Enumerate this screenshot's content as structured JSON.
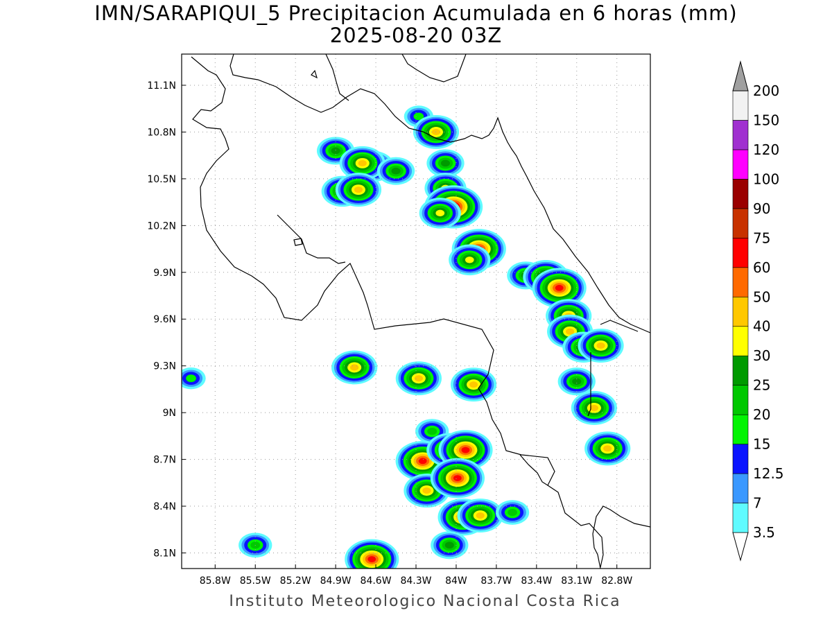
{
  "title": {
    "line1": "IMN/SARAPIQUI_5 Precipitacion Acumulada en 6 horas (mm)",
    "line2": "2025-08-20 03Z"
  },
  "credit": "Instituto Meteorologico Nacional Costa Rica",
  "map": {
    "lon_range": [
      -86.05,
      -82.55
    ],
    "lat_range": [
      8.0,
      11.3
    ],
    "lon_ticks": [
      "85.8W",
      "85.5W",
      "85.2W",
      "84.9W",
      "84.6W",
      "84.3W",
      "84W",
      "83.7W",
      "83.4W",
      "83.1W",
      "82.8W"
    ],
    "lon_tick_values": [
      -85.8,
      -85.5,
      -85.2,
      -84.9,
      -84.6,
      -84.3,
      -84.0,
      -83.7,
      -83.4,
      -83.1,
      -82.8
    ],
    "lat_ticks": [
      "8.1N",
      "8.4N",
      "8.7N",
      "9N",
      "9.3N",
      "9.6N",
      "9.9N",
      "10.2N",
      "10.5N",
      "10.8N",
      "11.1N"
    ],
    "lat_tick_values": [
      8.1,
      8.4,
      8.7,
      9.0,
      9.3,
      9.6,
      9.9,
      10.2,
      10.5,
      10.8,
      11.1
    ],
    "grid": true
  },
  "colorbar": {
    "levels": [
      "3.5",
      "7",
      "12.5",
      "15",
      "20",
      "25",
      "30",
      "40",
      "50",
      "60",
      "75",
      "90",
      "100",
      "120",
      "150",
      "200"
    ],
    "colors": [
      "#ffffff",
      "#5ffbff",
      "#3a98ff",
      "#0a14ff",
      "#02f402",
      "#00c800",
      "#009a00",
      "#ffff00",
      "#ffc800",
      "#ff6a00",
      "#ff0000",
      "#c83200",
      "#9a0000",
      "#ff00ff",
      "#a030d0",
      "#f2f2f2",
      "#a0a0a0"
    ]
  },
  "precip_cells": [
    {
      "lon": -84.9,
      "lat": 10.68,
      "mm": 25
    },
    {
      "lon": -84.62,
      "lat": 10.58,
      "mm": 30
    },
    {
      "lon": -84.7,
      "lat": 10.6,
      "mm": 40
    },
    {
      "lon": -84.45,
      "lat": 10.55,
      "mm": 25
    },
    {
      "lon": -84.85,
      "lat": 10.42,
      "mm": 30
    },
    {
      "lon": -84.73,
      "lat": 10.43,
      "mm": 40
    },
    {
      "lon": -84.28,
      "lat": 10.9,
      "mm": 15
    },
    {
      "lon": -84.15,
      "lat": 10.8,
      "mm": 40
    },
    {
      "lon": -84.08,
      "lat": 10.6,
      "mm": 25
    },
    {
      "lon": -84.08,
      "lat": 10.44,
      "mm": 30
    },
    {
      "lon": -84.02,
      "lat": 10.32,
      "mm": 75
    },
    {
      "lon": -84.12,
      "lat": 10.28,
      "mm": 30
    },
    {
      "lon": -83.83,
      "lat": 10.05,
      "mm": 60
    },
    {
      "lon": -83.9,
      "lat": 9.98,
      "mm": 30
    },
    {
      "lon": -83.48,
      "lat": 9.88,
      "mm": 25
    },
    {
      "lon": -83.33,
      "lat": 9.87,
      "mm": 40
    },
    {
      "lon": -83.23,
      "lat": 9.8,
      "mm": 60
    },
    {
      "lon": -83.16,
      "lat": 9.62,
      "mm": 40
    },
    {
      "lon": -83.15,
      "lat": 9.52,
      "mm": 40
    },
    {
      "lon": -83.05,
      "lat": 9.42,
      "mm": 30
    },
    {
      "lon": -82.92,
      "lat": 9.43,
      "mm": 40
    },
    {
      "lon": -83.1,
      "lat": 9.2,
      "mm": 25
    },
    {
      "lon": -82.97,
      "lat": 9.03,
      "mm": 40
    },
    {
      "lon": -82.87,
      "lat": 8.77,
      "mm": 40
    },
    {
      "lon": -84.76,
      "lat": 9.29,
      "mm": 40
    },
    {
      "lon": -85.98,
      "lat": 9.22,
      "mm": 15
    },
    {
      "lon": -84.28,
      "lat": 9.22,
      "mm": 40
    },
    {
      "lon": -83.87,
      "lat": 9.18,
      "mm": 40
    },
    {
      "lon": -84.18,
      "lat": 8.88,
      "mm": 20
    },
    {
      "lon": -84.25,
      "lat": 8.69,
      "mm": 60
    },
    {
      "lon": -84.05,
      "lat": 8.76,
      "mm": 40
    },
    {
      "lon": -83.93,
      "lat": 8.76,
      "mm": 60
    },
    {
      "lon": -84.22,
      "lat": 8.5,
      "mm": 40
    },
    {
      "lon": -83.99,
      "lat": 8.58,
      "mm": 60
    },
    {
      "lon": -83.95,
      "lat": 8.33,
      "mm": 50
    },
    {
      "lon": -83.82,
      "lat": 8.34,
      "mm": 40
    },
    {
      "lon": -84.63,
      "lat": 8.06,
      "mm": 60
    },
    {
      "lon": -85.5,
      "lat": 8.15,
      "mm": 20
    },
    {
      "lon": -84.05,
      "lat": 8.15,
      "mm": 25
    },
    {
      "lon": -83.58,
      "lat": 8.36,
      "mm": 20
    }
  ]
}
